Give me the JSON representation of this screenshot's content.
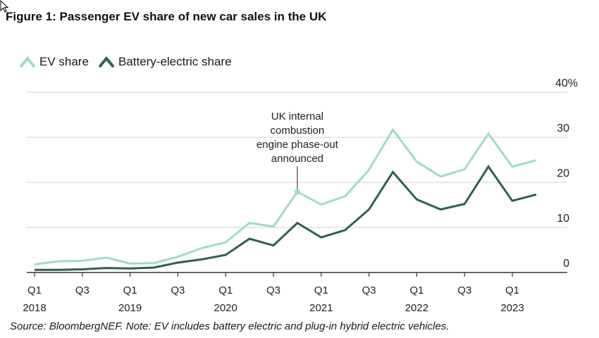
{
  "title": "Figure 1: Passenger EV share of new car sales in the UK",
  "source": "Source: BloombergNEF. Note: EV includes battery electric and plug-in hybrid electric vehicles.",
  "colors": {
    "ev": "#9fd9cf",
    "bev": "#2e5f53",
    "grid": "#d9d9d9",
    "axis": "#333333"
  },
  "chart_data": {
    "type": "line",
    "title": "Figure 1: Passenger EV share of new car sales in the UK",
    "ylabel": "",
    "xlabel": "",
    "ylim": [
      0,
      40
    ],
    "yticks": [
      0,
      10,
      20,
      30,
      40
    ],
    "ytick_labels": [
      "0",
      "10",
      "20",
      "30",
      "40%"
    ],
    "grid": true,
    "legend_position": "top-left",
    "x": [
      "Q1 2018",
      "Q2 2018",
      "Q3 2018",
      "Q4 2018",
      "Q1 2019",
      "Q2 2019",
      "Q3 2019",
      "Q4 2019",
      "Q1 2020",
      "Q2 2020",
      "Q3 2020",
      "Q4 2020",
      "Q1 2021",
      "Q2 2021",
      "Q3 2021",
      "Q4 2021",
      "Q1 2022",
      "Q2 2022",
      "Q3 2022",
      "Q4 2022",
      "Q1 2023",
      "Q2 2023"
    ],
    "xtick_labels": [
      {
        "index": 0,
        "quarter": "Q1",
        "year": "2018"
      },
      {
        "index": 2,
        "quarter": "Q3",
        "year": ""
      },
      {
        "index": 4,
        "quarter": "Q1",
        "year": "2019"
      },
      {
        "index": 6,
        "quarter": "Q3",
        "year": ""
      },
      {
        "index": 8,
        "quarter": "Q1",
        "year": "2020"
      },
      {
        "index": 10,
        "quarter": "Q3",
        "year": ""
      },
      {
        "index": 12,
        "quarter": "Q1",
        "year": "2021"
      },
      {
        "index": 14,
        "quarter": "Q3",
        "year": ""
      },
      {
        "index": 16,
        "quarter": "Q1",
        "year": "2022"
      },
      {
        "index": 18,
        "quarter": "Q3",
        "year": ""
      },
      {
        "index": 20,
        "quarter": "Q1",
        "year": "2023"
      }
    ],
    "series": [
      {
        "name": "EV share",
        "color": "#9fd9cf",
        "values": [
          1.8,
          2.5,
          2.6,
          3.3,
          2.0,
          2.1,
          3.5,
          5.4,
          6.7,
          11.0,
          10.2,
          17.9,
          15.1,
          16.9,
          22.8,
          31.7,
          24.6,
          21.3,
          22.9,
          30.8,
          23.5,
          24.9
        ]
      },
      {
        "name": "Battery-electric share",
        "color": "#2e5f53",
        "values": [
          0.6,
          0.6,
          0.7,
          1.0,
          0.9,
          1.1,
          2.2,
          2.9,
          3.9,
          7.5,
          6.0,
          11.0,
          7.8,
          9.4,
          14.0,
          22.3,
          16.2,
          14.0,
          15.2,
          23.5,
          15.9,
          17.3
        ]
      }
    ],
    "annotations": [
      {
        "text": "UK internal\ncombustion\nengine phase-out\nannounced",
        "series": 0,
        "index": 11
      }
    ]
  },
  "legend": [
    {
      "label": "EV share",
      "color": "#9fd9cf"
    },
    {
      "label": "Battery-electric share",
      "color": "#2e5f53"
    }
  ]
}
